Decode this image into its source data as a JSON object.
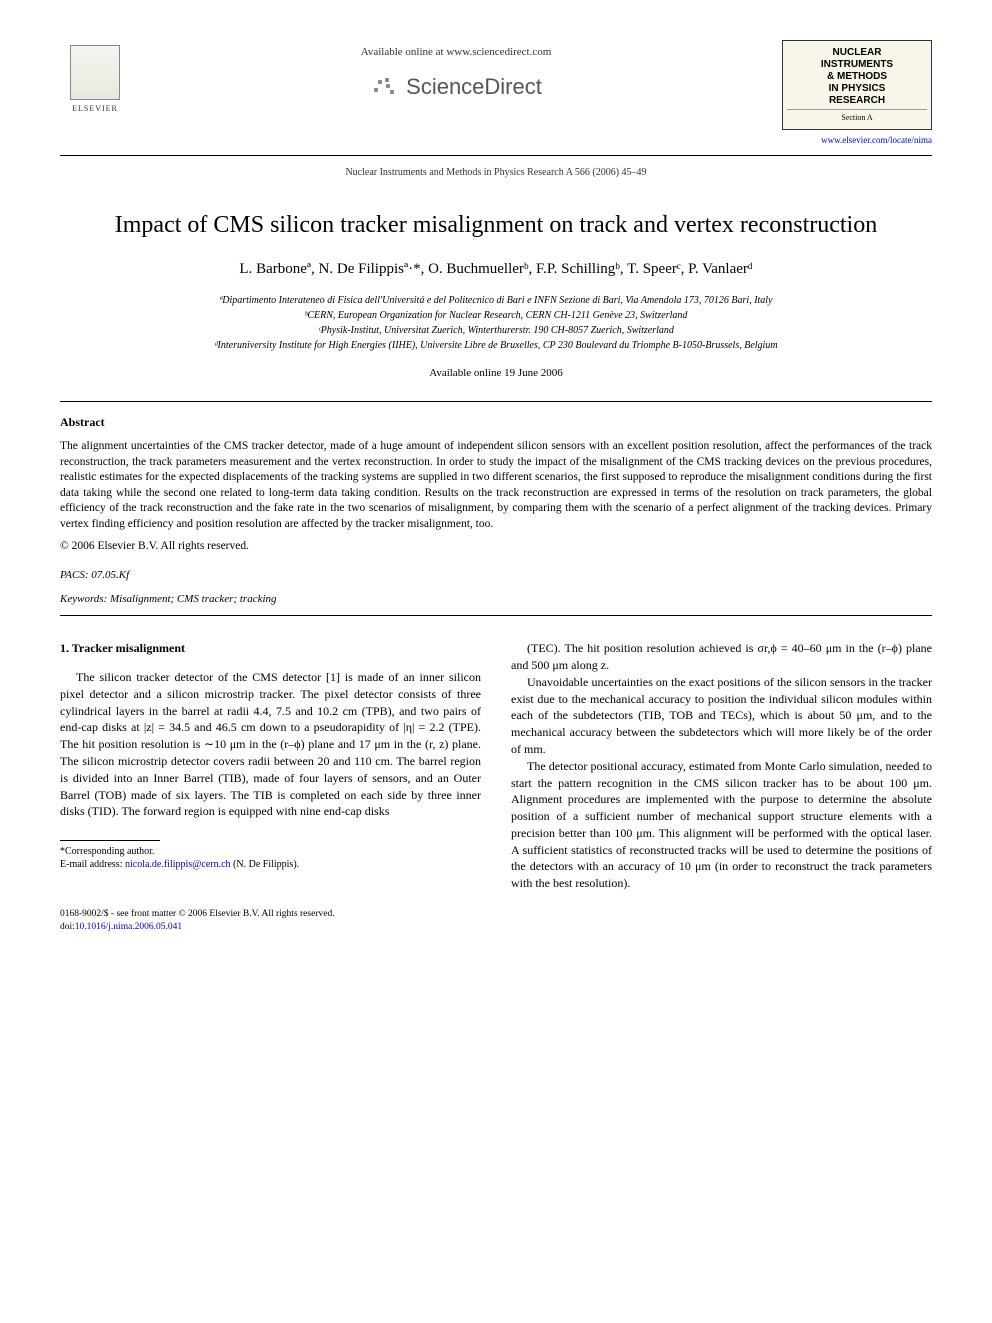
{
  "header": {
    "available_online": "Available online at www.sciencedirect.com",
    "sciencedirect": "ScienceDirect",
    "elsevier_label": "ELSEVIER",
    "citation": "Nuclear Instruments and Methods in Physics Research A 566 (2006) 45–49",
    "journal_box": {
      "line1": "NUCLEAR",
      "line2": "INSTRUMENTS",
      "line3": "& METHODS",
      "line4": "IN PHYSICS",
      "line5": "RESEARCH",
      "section": "Section A"
    },
    "journal_url": "www.elsevier.com/locate/nima"
  },
  "title": "Impact of CMS silicon tracker misalignment on track and vertex reconstruction",
  "authors_html": "L. Barboneª, N. De Filippisª·*, O. Buchmuellerᵇ, F.P. Schillingᵇ, T. Speerᶜ, P. Vanlaerᵈ",
  "affiliations": {
    "a": "ªDipartimento Interateneo di Fisica dell'Universitá e del Politecnico di Bari e INFN Sezione di Bari, Via Amendola 173, 70126 Bari, Italy",
    "b": "ᵇCERN, European Organization for Nuclear Research, CERN CH-1211 Genève 23, Switzerland",
    "c": "ᶜPhysik-Institut, Universitat Zuerich, Winterthurerstr. 190 CH-8057 Zuerich, Switzerland",
    "d": "ᵈInteruniversity Institute for High Energies (IIHE), Universite Libre de Bruxelles, CP 230 Boulevard du Triomphe B-1050-Brussels, Belgium"
  },
  "date_available": "Available online 19 June 2006",
  "abstract": {
    "heading": "Abstract",
    "text": "The alignment uncertainties of the CMS tracker detector, made of a huge amount of independent silicon sensors with an excellent position resolution, affect the performances of the track reconstruction, the track parameters measurement and the vertex reconstruction. In order to study the impact of the misalignment of the CMS tracking devices on the previous procedures, realistic estimates for the expected displacements of the tracking systems are supplied in two different scenarios, the first supposed to reproduce the misalignment conditions during the first data taking while the second one related to long-term data taking condition. Results on the track reconstruction are expressed in terms of the resolution on track parameters, the global efficiency of the track reconstruction and the fake rate in the two scenarios of misalignment, by comparing them with the scenario of a perfect alignment of the tracking devices. Primary vertex finding efficiency and position resolution are affected by the tracker misalignment, too.",
    "copyright": "© 2006 Elsevier B.V. All rights reserved."
  },
  "pacs": {
    "label": "PACS:",
    "value": "07.05.Kf"
  },
  "keywords": {
    "label": "Keywords:",
    "value": "Misalignment; CMS tracker; tracking"
  },
  "section1": {
    "heading": "1. Tracker misalignment",
    "col1_p1": "The silicon tracker detector of the CMS detector [1] is made of an inner silicon pixel detector and a silicon microstrip tracker. The pixel detector consists of three cylindrical layers in the barrel at radii 4.4, 7.5 and 10.2 cm (TPB), and two pairs of end-cap disks at |z| = 34.5 and 46.5 cm down to a pseudorapidity of |η| = 2.2 (TPE). The hit position resolution is ∼10 μm in the (r–ϕ) plane and 17 μm in the (r, z) plane. The silicon microstrip detector covers radii between 20 and 110 cm. The barrel region is divided into an Inner Barrel (TIB), made of four layers of sensors, and an Outer Barrel (TOB) made of six layers. The TIB is completed on each side by three inner disks (TID). The forward region is equipped with nine end-cap disks",
    "col2_p1": "(TEC). The hit position resolution achieved is σr,ϕ = 40–60 μm in the (r–ϕ) plane and 500 μm along z.",
    "col2_p2": "Unavoidable uncertainties on the exact positions of the silicon sensors in the tracker exist due to the mechanical accuracy to position the individual silicon modules within each of the subdetectors (TIB, TOB and TECs), which is about 50 μm, and to the mechanical accuracy between the subdetectors which will more likely be of the order of mm.",
    "col2_p3": "The detector positional accuracy, estimated from Monte Carlo simulation, needed to start the pattern recognition in the CMS silicon tracker has to be about 100 μm. Alignment procedures are implemented with the purpose to determine the absolute position of a sufficient number of mechanical support structure elements with a precision better than 100 μm. This alignment will be performed with the optical laser. A sufficient statistics of reconstructed tracks will be used to determine the positions of the detectors with an accuracy of 10 μm (in order to reconstruct the track parameters with the best resolution)."
  },
  "footnote": {
    "corresponding": "*Corresponding author.",
    "email_label": "E-mail address:",
    "email": "nicola.de.filippis@cern.ch",
    "email_author": "(N. De Filippis)."
  },
  "footer": {
    "issn": "0168-9002/$ - see front matter © 2006 Elsevier B.V. All rights reserved.",
    "doi_label": "doi:",
    "doi": "10.1016/j.nima.2006.05.041"
  },
  "colors": {
    "text": "#000000",
    "link": "#0000cc",
    "background": "#ffffff",
    "journal_box_bg": "#f8f6e8"
  },
  "typography": {
    "title_fontsize": 24,
    "body_fontsize": 12,
    "abstract_fontsize": 11.5,
    "footnote_fontsize": 10,
    "font_family": "Georgia, Times New Roman, serif"
  }
}
